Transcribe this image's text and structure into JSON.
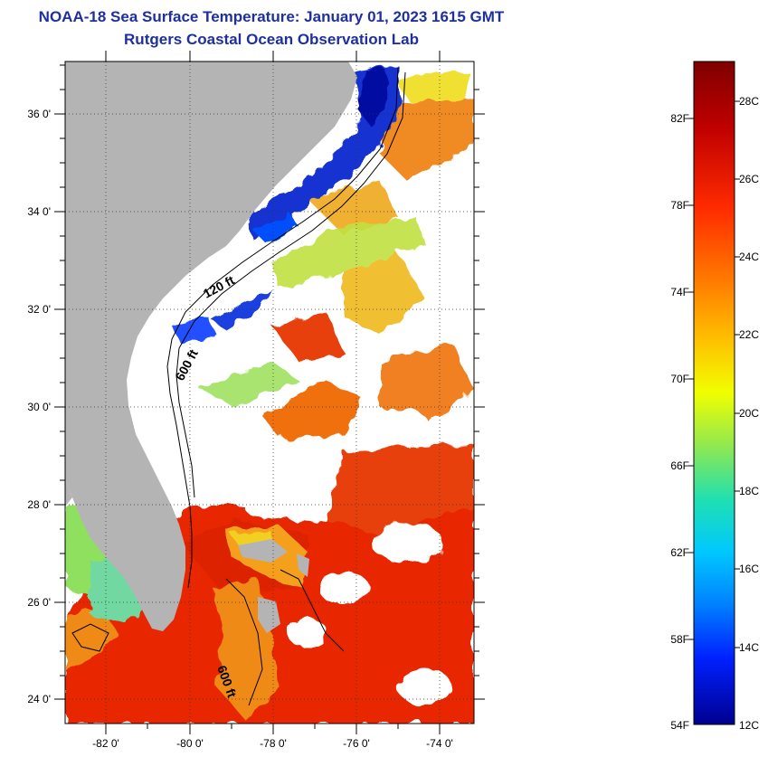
{
  "title": {
    "line1": "NOAA-18 Sea Surface Temperature:  January 01, 2023 1615 GMT",
    "line2": "Rutgers Coastal Ocean Observation Lab"
  },
  "map": {
    "lat_ticks": [
      "36 0'",
      "34 0'",
      "32 0'",
      "30 0'",
      "28 0'",
      "26 0'",
      "24 0'"
    ],
    "lon_ticks": [
      "-82 0'",
      "-80 0'",
      "-78 0'",
      "-76 0'",
      "-74 0'"
    ],
    "isobath_labels": [
      "120 ft",
      "600 ft",
      "600 ft"
    ],
    "land_color": "#b4b4b4",
    "cloud_color": "#ffffff"
  },
  "colorbar": {
    "fahrenheit_labels": [
      "82F",
      "78F",
      "74F",
      "70F",
      "66F",
      "62F",
      "58F",
      "54F"
    ],
    "celsius_labels": [
      "28C",
      "26C",
      "24C",
      "22C",
      "20C",
      "18C",
      "16C",
      "14C",
      "12C"
    ],
    "colors": [
      "#7f0000",
      "#dc1400",
      "#ff6a00",
      "#ffb400",
      "#f0ff00",
      "#80e060",
      "#00e8c8",
      "#00a0ff",
      "#0030ff",
      "#000090"
    ]
  }
}
